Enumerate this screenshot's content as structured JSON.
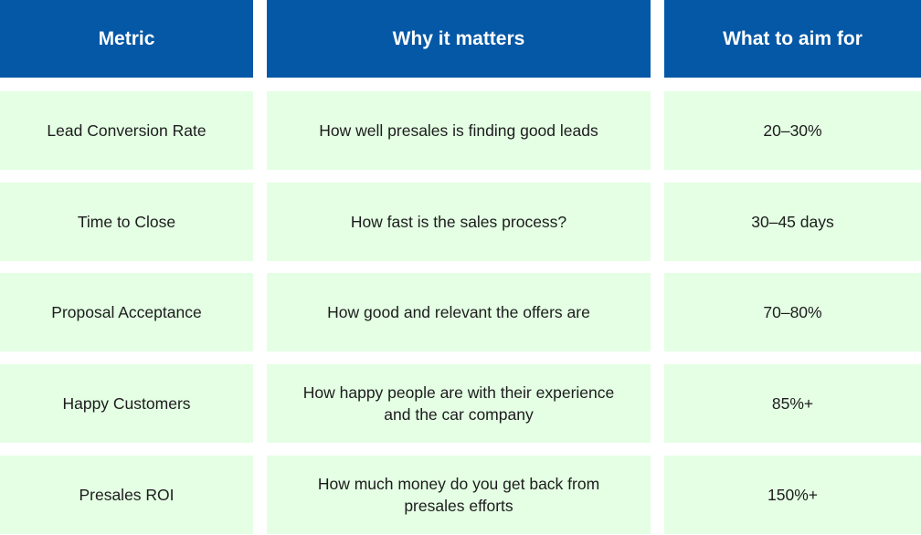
{
  "table": {
    "headers": [
      "Metric",
      "Why it matters",
      "What to aim for"
    ],
    "rows": [
      {
        "metric": "Lead Conversion Rate",
        "why": "How well presales is finding good leads",
        "target": "20–30%"
      },
      {
        "metric": "Time to Close",
        "why": "How fast is the sales process?",
        "target": "30–45 days"
      },
      {
        "metric": "Proposal Acceptance",
        "why": "How good and relevant the offers are",
        "target": "70–80%"
      },
      {
        "metric": "Happy Customers",
        "why": "How happy people are with their experience and the car company",
        "target": "85%+"
      },
      {
        "metric": "Presales ROI",
        "why": "How much money do you get back from presales efforts",
        "target": "150%+"
      }
    ]
  },
  "colors": {
    "header_bg": "#0458a6",
    "header_text": "#ffffff",
    "row_bg": "#e4ffe4",
    "row_text": "#1c1c1c"
  }
}
